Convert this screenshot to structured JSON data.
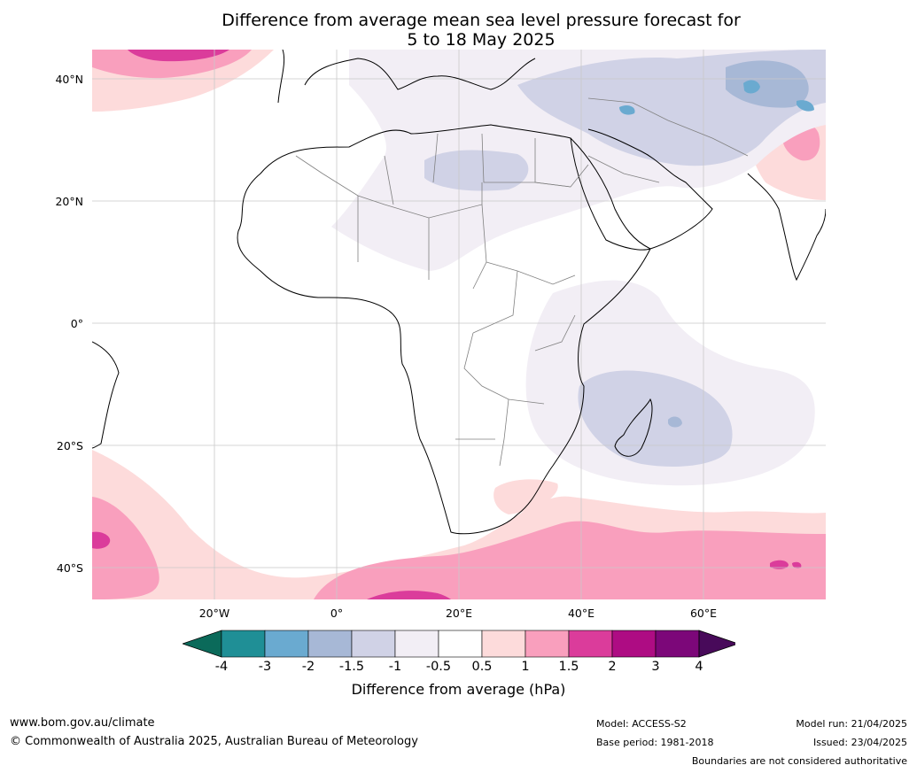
{
  "title": {
    "line1": "Difference from average mean sea level pressure forecast for",
    "line2": "5 to 18 May 2025"
  },
  "map": {
    "lat_labels": [
      "40°N",
      "20°N",
      "0°",
      "20°S",
      "40°S"
    ],
    "lon_labels": [
      "20°W",
      "0°",
      "20°E",
      "40°E",
      "60°E"
    ],
    "colors": {
      "ocean": "#ffffff",
      "graticule": "#c8c8c8",
      "coast": "#000000",
      "borders": "#808080"
    }
  },
  "colorbar": {
    "label": "Difference from average (hPa)",
    "ticks": [
      "-4",
      "-3",
      "-2",
      "-1.5",
      "-1",
      "-0.5",
      "0.5",
      "1",
      "1.5",
      "2",
      "3",
      "4"
    ],
    "colors": [
      "#0b6a5a",
      "#1f8f96",
      "#6aaad0",
      "#a7b8d6",
      "#d0d2e6",
      "#f2eef5",
      "#ffffff",
      "#fddbdb",
      "#f99fbd",
      "#db3c9b",
      "#ae0c83",
      "#7c0779",
      "#480a5a"
    ]
  },
  "footer": {
    "website": "www.bom.gov.au/climate",
    "copyright": "© Commonwealth of Australia 2025, Australian Bureau of Meteorology",
    "model": "Model: ACCESS-S2",
    "base_period": "Base period: 1981-2018",
    "model_run": "Model run: 21/04/2025",
    "issued": "Issued: 23/04/2025",
    "disclaimer": "Boundaries are not considered authoritative"
  }
}
